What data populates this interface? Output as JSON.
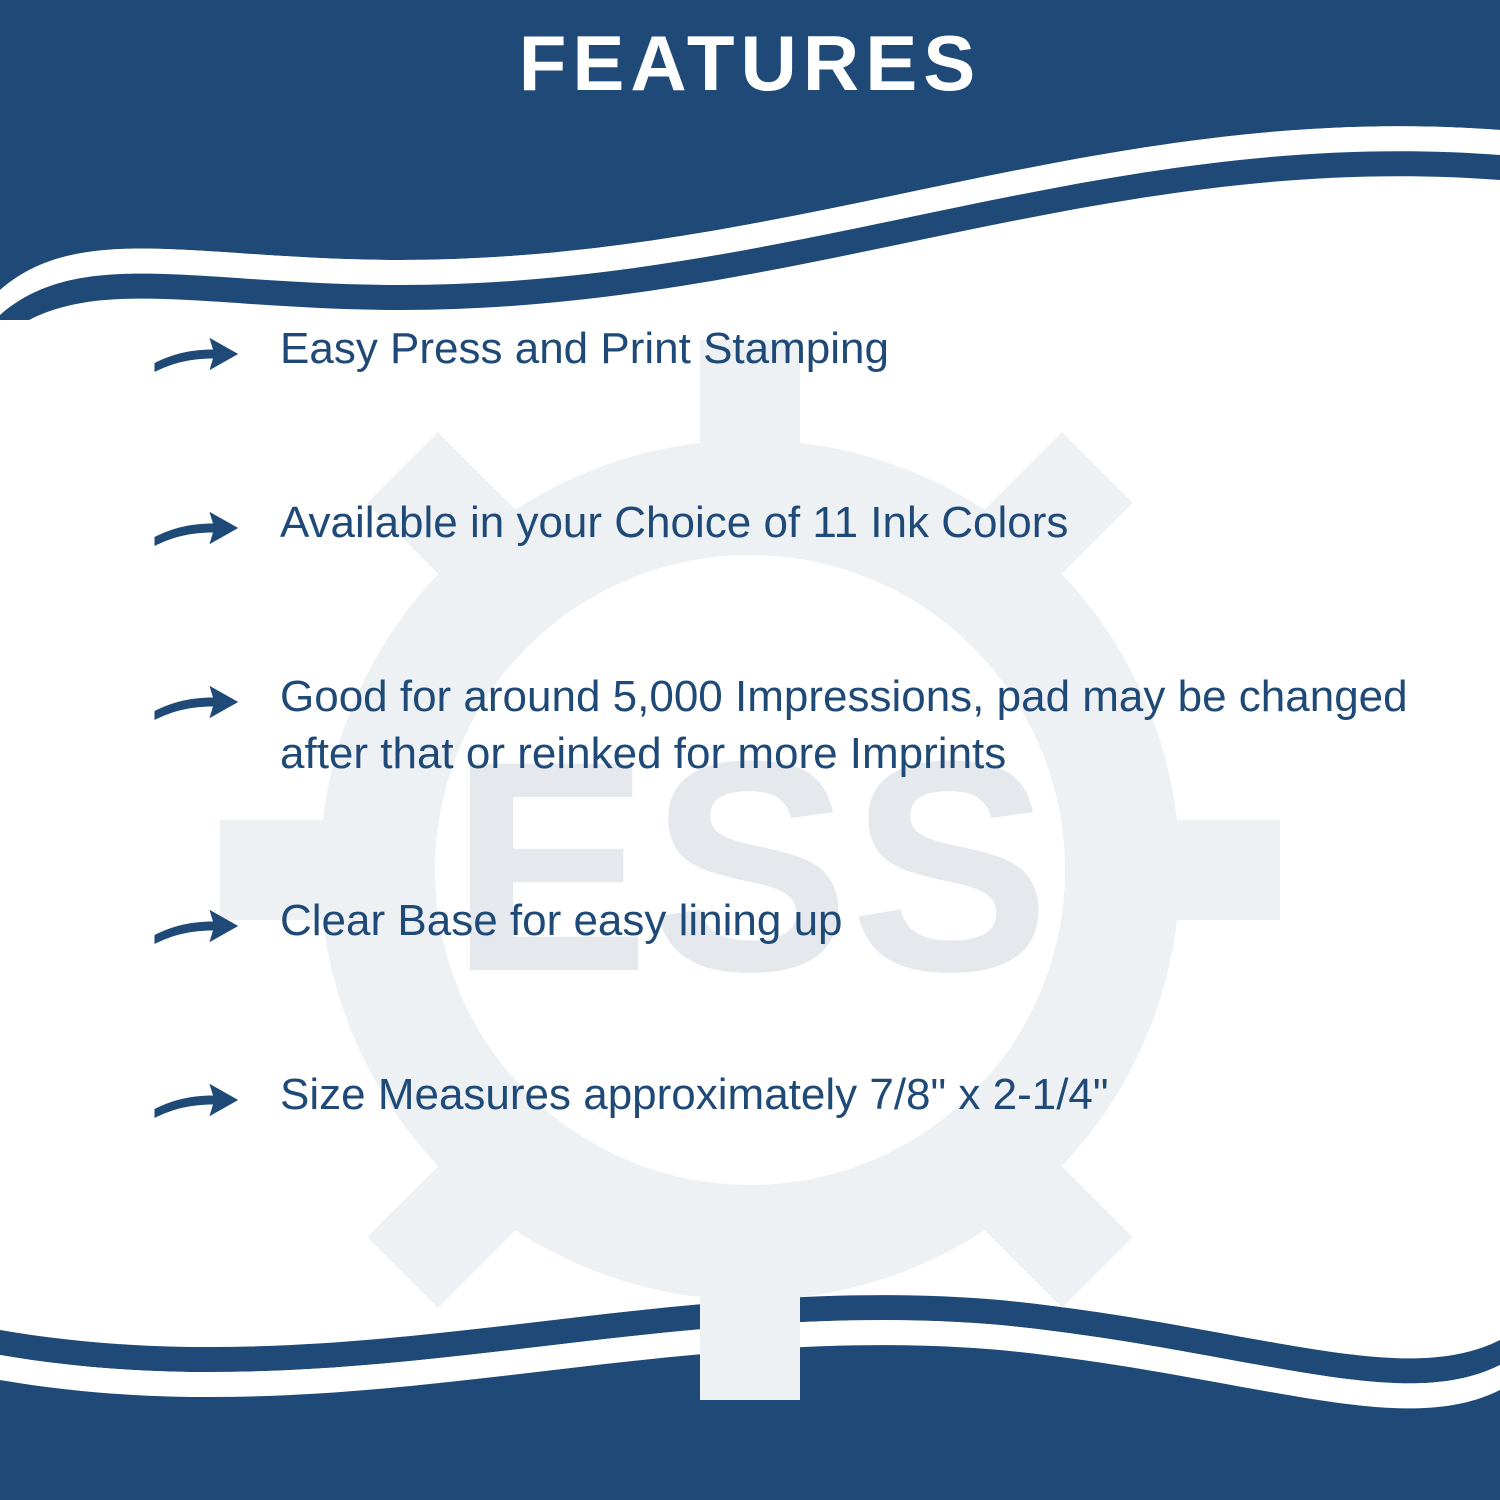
{
  "infographic": {
    "type": "infographic",
    "heading": "FEATURES",
    "heading_fontsize": 78,
    "heading_color": "#ffffff",
    "heading_letter_spacing": 6,
    "brand_color": "#1f4a78",
    "background_color": "#ffffff",
    "text_color": "#1f4a78",
    "text_fontsize": 44,
    "text_line_height": 1.3,
    "arrow_color": "#1f4a78",
    "arrow_width": 90,
    "arrow_height": 60,
    "watermark_text": "ESS",
    "watermark_color": "#eef1f4",
    "watermark_text_color": "#e5e9ed",
    "top_wave_height": 260,
    "bottom_wave_height": 200,
    "wave_gap_color": "#ffffff",
    "feature_gap": 110,
    "features": [
      {
        "text": "Easy Press and Print Stamping"
      },
      {
        "text": "Available in your Choice of 11 Ink Colors"
      },
      {
        "text": "Good for around 5,000 Impressions, pad may be changed after that or reinked for more Imprints"
      },
      {
        "text": "Clear Base for easy lining up"
      },
      {
        "text": "Size Measures approximately 7/8\" x 2-1/4\""
      }
    ]
  }
}
